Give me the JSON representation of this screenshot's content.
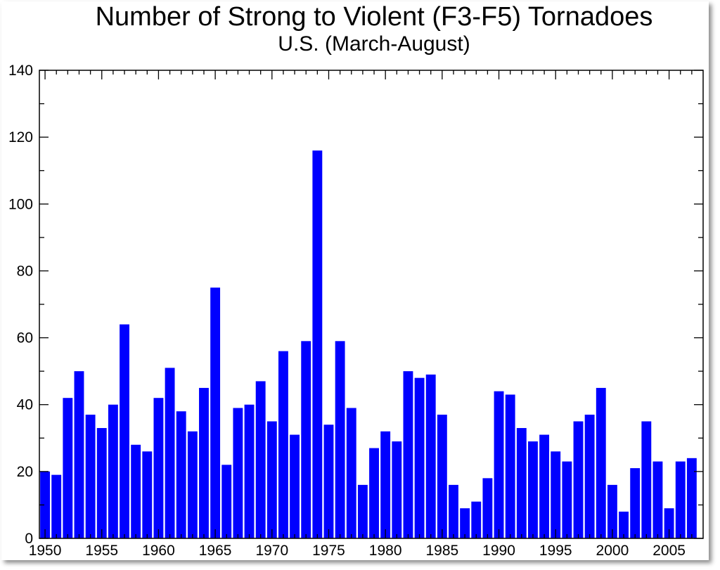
{
  "chart_data": {
    "type": "bar",
    "title": "Number of Strong to Violent (F3-F5) Tornadoes",
    "subtitle": "U.S.  (March-August)",
    "xlabel": "",
    "ylabel": "",
    "ylim": [
      0,
      140
    ],
    "xlim": [
      1949.5,
      2008
    ],
    "grid": false,
    "bar_color": "#0000ff",
    "x": [
      1950,
      1951,
      1952,
      1953,
      1954,
      1955,
      1956,
      1957,
      1958,
      1959,
      1960,
      1961,
      1962,
      1963,
      1964,
      1965,
      1966,
      1967,
      1968,
      1969,
      1970,
      1971,
      1972,
      1973,
      1974,
      1975,
      1976,
      1977,
      1978,
      1979,
      1980,
      1981,
      1982,
      1983,
      1984,
      1985,
      1986,
      1987,
      1988,
      1989,
      1990,
      1991,
      1992,
      1993,
      1994,
      1995,
      1996,
      1997,
      1998,
      1999,
      2000,
      2001,
      2002,
      2003,
      2004,
      2005,
      2006,
      2007
    ],
    "values": [
      20,
      19,
      42,
      50,
      37,
      33,
      40,
      64,
      28,
      26,
      42,
      51,
      38,
      32,
      45,
      75,
      22,
      39,
      40,
      47,
      35,
      56,
      31,
      59,
      116,
      34,
      59,
      39,
      16,
      27,
      32,
      29,
      50,
      48,
      49,
      37,
      16,
      9,
      11,
      18,
      44,
      43,
      33,
      29,
      31,
      26,
      23,
      35,
      37,
      45,
      16,
      8,
      21,
      35,
      23,
      9,
      23,
      24
    ],
    "x_ticks": [
      1950,
      1955,
      1960,
      1965,
      1970,
      1975,
      1980,
      1985,
      1990,
      1995,
      2000,
      2005
    ],
    "y_ticks": [
      0,
      20,
      40,
      60,
      80,
      100,
      120,
      140
    ]
  }
}
